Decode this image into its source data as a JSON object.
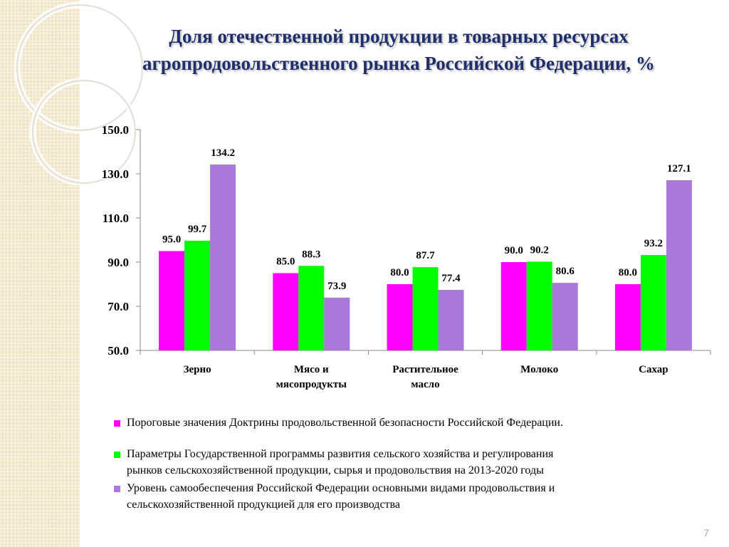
{
  "title_lines": [
    "Доля отечественной продукции в товарных ресурсах",
    "агропродовольственного рынка Российской Федерации, %"
  ],
  "page_number": "7",
  "colors": {
    "background_strip": "#efe4c4",
    "title": "#1f2f6b"
  },
  "chart_data": {
    "type": "bar",
    "categories": [
      [
        "Зерно"
      ],
      [
        "Мясо и",
        "мясопродукты"
      ],
      [
        "Растительное",
        "масло"
      ],
      [
        "Молоко"
      ],
      [
        "Сахар"
      ]
    ],
    "series": [
      {
        "name": "Пороговые значения Доктрины продовольственной безопасности Российской Федерации.",
        "color": "#ff00ff",
        "values": [
          95.0,
          85.0,
          80.0,
          90.0,
          80.0
        ]
      },
      {
        "name": "Параметры Государственной программы развития сельского хозяйства и регулирования рынков сельскохозяйственной продукции, сырья и продовольствия на 2013-2020 годы",
        "color": "#00ff00",
        "values": [
          99.7,
          88.3,
          87.7,
          90.2,
          93.2
        ]
      },
      {
        "name": "Уровень самообеспечения Российской Федерации основными видами продовольствия и сельскохозяйственной продукцией для его производства",
        "color": "#a978d8",
        "values": [
          134.2,
          73.9,
          77.4,
          80.6,
          127.1
        ]
      }
    ],
    "ylim": [
      50,
      150
    ],
    "yticks": [
      "150.0",
      "130.0",
      "110.0",
      "90.0",
      "70.0",
      "50.0"
    ],
    "value_format": "one_decimal",
    "grid": false,
    "legend_position": "bottom"
  },
  "legend": {
    "items": [
      {
        "lines": [
          "Пороговые значения Доктрины продовольственной безопасности Российской Федерации."
        ]
      },
      {
        "lines": [
          "Параметры Государственной программы развития сельского хозяйства и регулирования",
          "рынков сельскохозяйственной продукции, сырья и продовольствия на 2013-2020 годы"
        ]
      },
      {
        "lines": [
          "Уровень самообеспечения Российской Федерации основными видами продовольствия и",
          "сельскохозяйственной продукцией для его производства"
        ]
      }
    ]
  }
}
